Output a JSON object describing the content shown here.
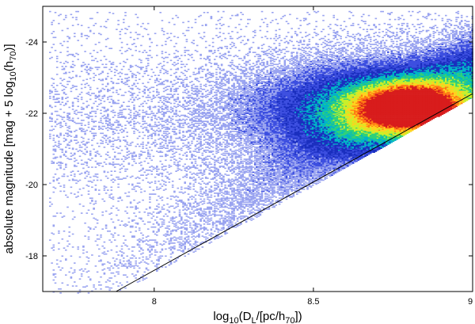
{
  "chart_data": {
    "type": "heatmap",
    "title": "",
    "xlabel": {
      "prefix": "log",
      "sub1": "10",
      "mid1": "(D",
      "sub2": "L",
      "mid2": "/[pc/h",
      "sub3": "70",
      "suffix": "])"
    },
    "ylabel": {
      "prefix": "absolute magnitude [mag + 5 log",
      "sub1": "10",
      "mid1": "(h",
      "sub2": "70",
      "suffix": ")]"
    },
    "xlim": [
      7.65,
      9.0
    ],
    "ylim": [
      -17.0,
      -25.0
    ],
    "x_ticks": [
      8,
      8.5,
      9
    ],
    "x_tick_labels": [
      "8",
      "8.5",
      "9"
    ],
    "y_ticks": [
      -18,
      -20,
      -22,
      -24
    ],
    "y_tick_labels": [
      "-18",
      "-20",
      "-22",
      "-24"
    ],
    "colormap": [
      "#ffffff",
      "#9aa4f0",
      "#3d4fe0",
      "#1a2fbf",
      "#00b4c8",
      "#2fd07a",
      "#c8f02a",
      "#ffd21e",
      "#ff7a14",
      "#d81c1c"
    ],
    "density_peak": {
      "x": 8.8,
      "y": -22.2
    },
    "limit_line": {
      "x": [
        7.88,
        9.0
      ],
      "y": [
        -17.0,
        -22.55
      ]
    },
    "grid": false,
    "legend": "none"
  }
}
